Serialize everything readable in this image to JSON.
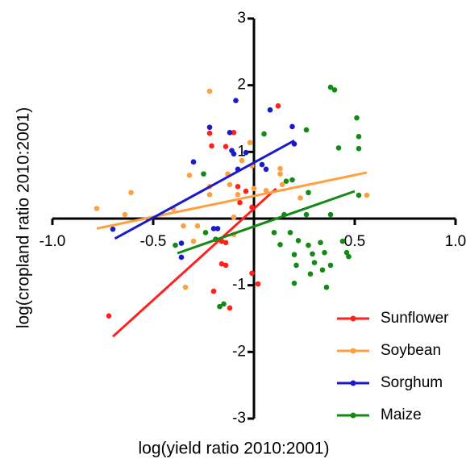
{
  "chart_data": {
    "type": "scatter",
    "x_label": "log(yield ratio 2010:2001)",
    "y_label": "log(cropland ratio 2010:2001)",
    "xlim": [
      -1,
      1
    ],
    "ylim": [
      -3,
      3
    ],
    "xticks": [
      {
        "value": -1,
        "label": "-1.0"
      },
      {
        "value": -0.5,
        "label": "-0.5"
      },
      {
        "value": 0.5,
        "label": "0.5"
      },
      {
        "value": 1,
        "label": "1.0"
      }
    ],
    "yticks": [
      -3,
      -2,
      -1,
      1,
      2,
      3
    ],
    "legend": "lower right",
    "series": [
      {
        "name": "Sunflower",
        "color": "#ff2020",
        "x": [
          -0.72,
          -0.22,
          -0.21,
          -0.14,
          0.12,
          -0.1,
          -0.08,
          -0.04,
          -0.07,
          -0.01,
          -0.16,
          -0.14,
          -0.16,
          -0.2,
          -0.12,
          -0.01,
          0.02,
          -0.14
        ],
        "values": [
          -1.46,
          1.28,
          1.09,
          1.08,
          1.69,
          1.29,
          0.48,
          0.41,
          0.24,
          0.17,
          -0.34,
          -0.36,
          -0.68,
          -1.09,
          -1.34,
          -0.82,
          -0.98,
          -0.7
        ],
        "fit": {
          "x": [
            -0.7,
            0.11
          ],
          "y": [
            -1.77,
            0.45
          ]
        }
      },
      {
        "name": "Soybean",
        "color": "#ffa040",
        "x": [
          -0.22,
          -0.78,
          -0.64,
          -0.61,
          -0.32,
          -0.22,
          -0.22,
          -0.34,
          -0.35,
          -0.4,
          -0.13,
          -0.02,
          -0.01,
          -0.06,
          0.0,
          0.06,
          -0.1,
          0.13,
          0.13,
          0.23,
          0.14,
          0.56,
          -0.08,
          -0.28,
          -0.3,
          -0.1,
          -0.12
        ],
        "values": [
          1.91,
          0.15,
          0.06,
          0.39,
          0.65,
          0.36,
          0.48,
          -1.03,
          -0.11,
          0.15,
          0.67,
          1.14,
          0.79,
          0.87,
          0.45,
          0.42,
          0.02,
          0.75,
          0.67,
          0.31,
          0.51,
          0.35,
          0.36,
          -0.11,
          -0.34,
          -0.24,
          0.51
        ],
        "fit": {
          "x": [
            -0.78,
            0.56
          ],
          "y": [
            -0.15,
            0.69
          ]
        }
      },
      {
        "name": "Sorghum",
        "color": "#1a1acc",
        "x": [
          -0.7,
          -0.36,
          -0.36,
          -0.3,
          -0.22,
          -0.09,
          -0.12,
          -0.1,
          -0.08,
          -0.11,
          -0.04,
          0.04,
          0.06,
          0.08,
          0.19,
          0.2,
          -0.2,
          -0.18
        ],
        "values": [
          -0.16,
          -0.37,
          -0.58,
          0.85,
          1.37,
          1.77,
          1.29,
          0.97,
          0.74,
          1.02,
          0.99,
          0.81,
          0.74,
          1.63,
          1.38,
          1.12,
          -0.15,
          -0.15
        ],
        "fit": {
          "x": [
            -0.69,
            0.2
          ],
          "y": [
            -0.3,
            1.17
          ]
        }
      },
      {
        "name": "Maize",
        "color": "#138a13",
        "x": [
          0.38,
          0.4,
          0.51,
          0.52,
          0.52,
          0.42,
          0.26,
          0.05,
          -0.25,
          0.16,
          0.19,
          0.27,
          0.38,
          0.52,
          0.26,
          0.15,
          0.18,
          0.1,
          0.22,
          0.27,
          0.33,
          0.44,
          0.13,
          0.2,
          0.21,
          0.29,
          0.3,
          0.34,
          0.35,
          0.38,
          0.46,
          0.47,
          0.36,
          0.28,
          0.2,
          -0.15,
          -0.17,
          -0.19,
          -0.24,
          -0.39
        ],
        "values": [
          1.97,
          1.93,
          1.51,
          1.23,
          1.05,
          1.06,
          1.33,
          1.27,
          0.67,
          0.56,
          0.58,
          0.39,
          0.06,
          0.35,
          0.06,
          0.06,
          -0.21,
          -0.21,
          -0.33,
          -0.4,
          -0.36,
          -0.34,
          -0.39,
          -0.54,
          -0.7,
          -0.53,
          -0.66,
          -0.77,
          -0.51,
          -0.7,
          -0.51,
          -0.57,
          -1.03,
          -0.83,
          -0.97,
          -1.28,
          -1.32,
          -0.31,
          -0.21,
          -0.4
        ],
        "fit": {
          "x": [
            -0.38,
            0.5
          ],
          "y": [
            -0.52,
            0.41
          ]
        }
      }
    ]
  }
}
